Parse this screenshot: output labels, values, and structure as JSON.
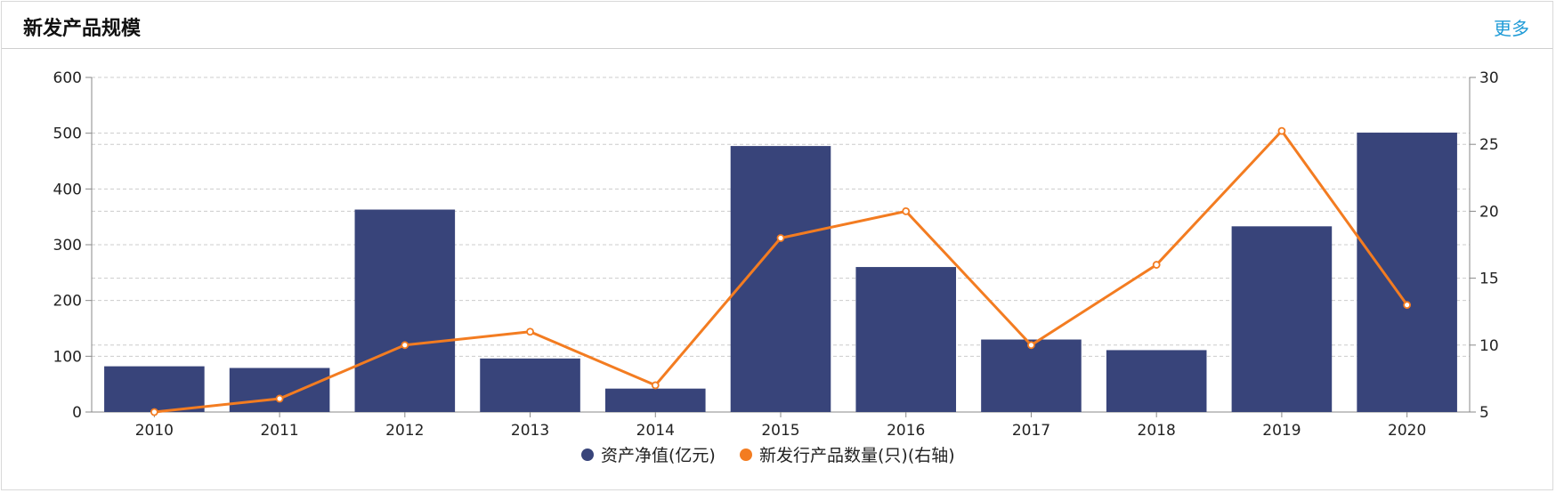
{
  "header": {
    "title": "新发产品规模",
    "more_label": "更多"
  },
  "colors": {
    "bar": "#38447a",
    "line": "#f37c21",
    "grid": "#cccccc",
    "axis": "#888888",
    "link": "#1f9bd7"
  },
  "chart_data": {
    "type": "bar",
    "categories": [
      "2010",
      "2011",
      "2012",
      "2013",
      "2014",
      "2015",
      "2016",
      "2017",
      "2018",
      "2019",
      "2020"
    ],
    "series": [
      {
        "name": "资产净值(亿元)",
        "type": "bar",
        "axis": "left",
        "values": [
          82,
          79,
          363,
          96,
          42,
          477,
          260,
          130,
          111,
          333,
          501
        ]
      },
      {
        "name": "新发行产品数量(只)(右轴)",
        "type": "line",
        "axis": "right",
        "values": [
          5,
          6,
          10,
          11,
          7,
          18,
          20,
          10,
          16,
          26,
          13
        ]
      }
    ],
    "y_left": {
      "min": 0,
      "max": 600,
      "ticks": [
        0,
        100,
        200,
        300,
        400,
        500,
        600
      ]
    },
    "y_right": {
      "min": 5,
      "max": 30,
      "ticks": [
        5,
        10,
        15,
        20,
        25,
        30
      ]
    },
    "grid": true,
    "legend_position": "bottom-center"
  }
}
